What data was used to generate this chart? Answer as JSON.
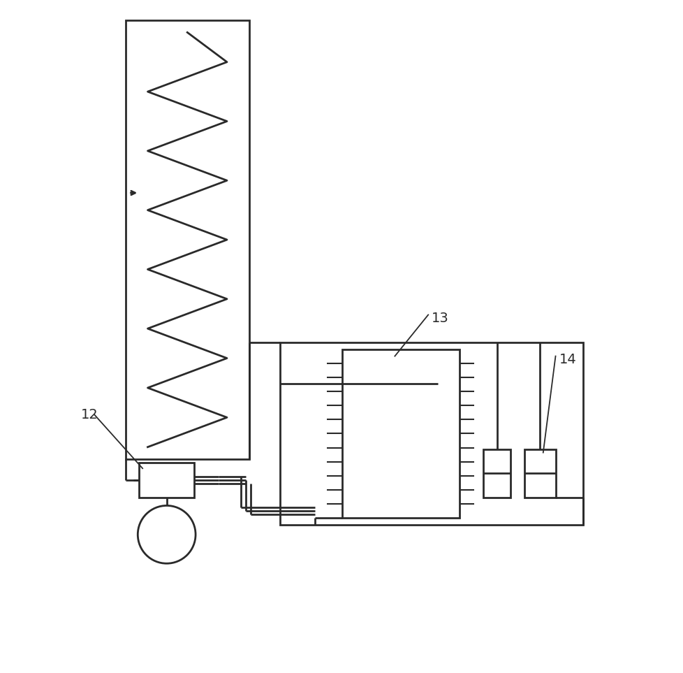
{
  "bg_color": "#ffffff",
  "line_color": "#2a2a2a",
  "line_width": 2.0,
  "fig_width": 9.79,
  "fig_height": 9.63,
  "label_fontsize": 14
}
